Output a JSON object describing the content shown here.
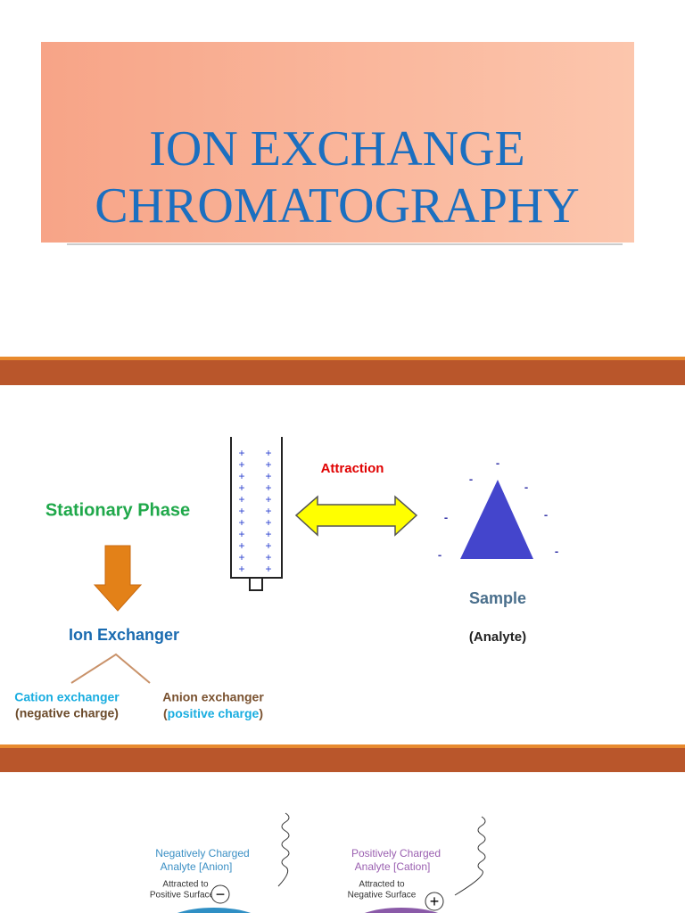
{
  "header": {
    "title_lines": [
      "ION EXCHANGE",
      "CHROMATOGRAPHY"
    ]
  },
  "slide": {
    "stationary_phase": "Stationary Phase",
    "attraction": "Attraction",
    "ion_exchanger": "Ion Exchanger",
    "cation": {
      "name": "Cation exchanger",
      "charge": "(negative charge)"
    },
    "anion": {
      "name": "Anion exchanger",
      "open": "(",
      "charge": "positive charge",
      "close": ")"
    },
    "column_charge": "+",
    "analyte_charge": "-",
    "sample": "Sample",
    "analyte": "(Analyte)"
  },
  "figure": {
    "left": {
      "lines": [
        "Negatively Charged",
        "Analyte [Anion]",
        "Attracted to",
        "Positive Surface"
      ],
      "sign": "−"
    },
    "right": {
      "lines": [
        "Positively Charged",
        "Analyte [Cation]",
        "Attracted to",
        "Negative Surface"
      ],
      "sign": "+"
    }
  }
}
